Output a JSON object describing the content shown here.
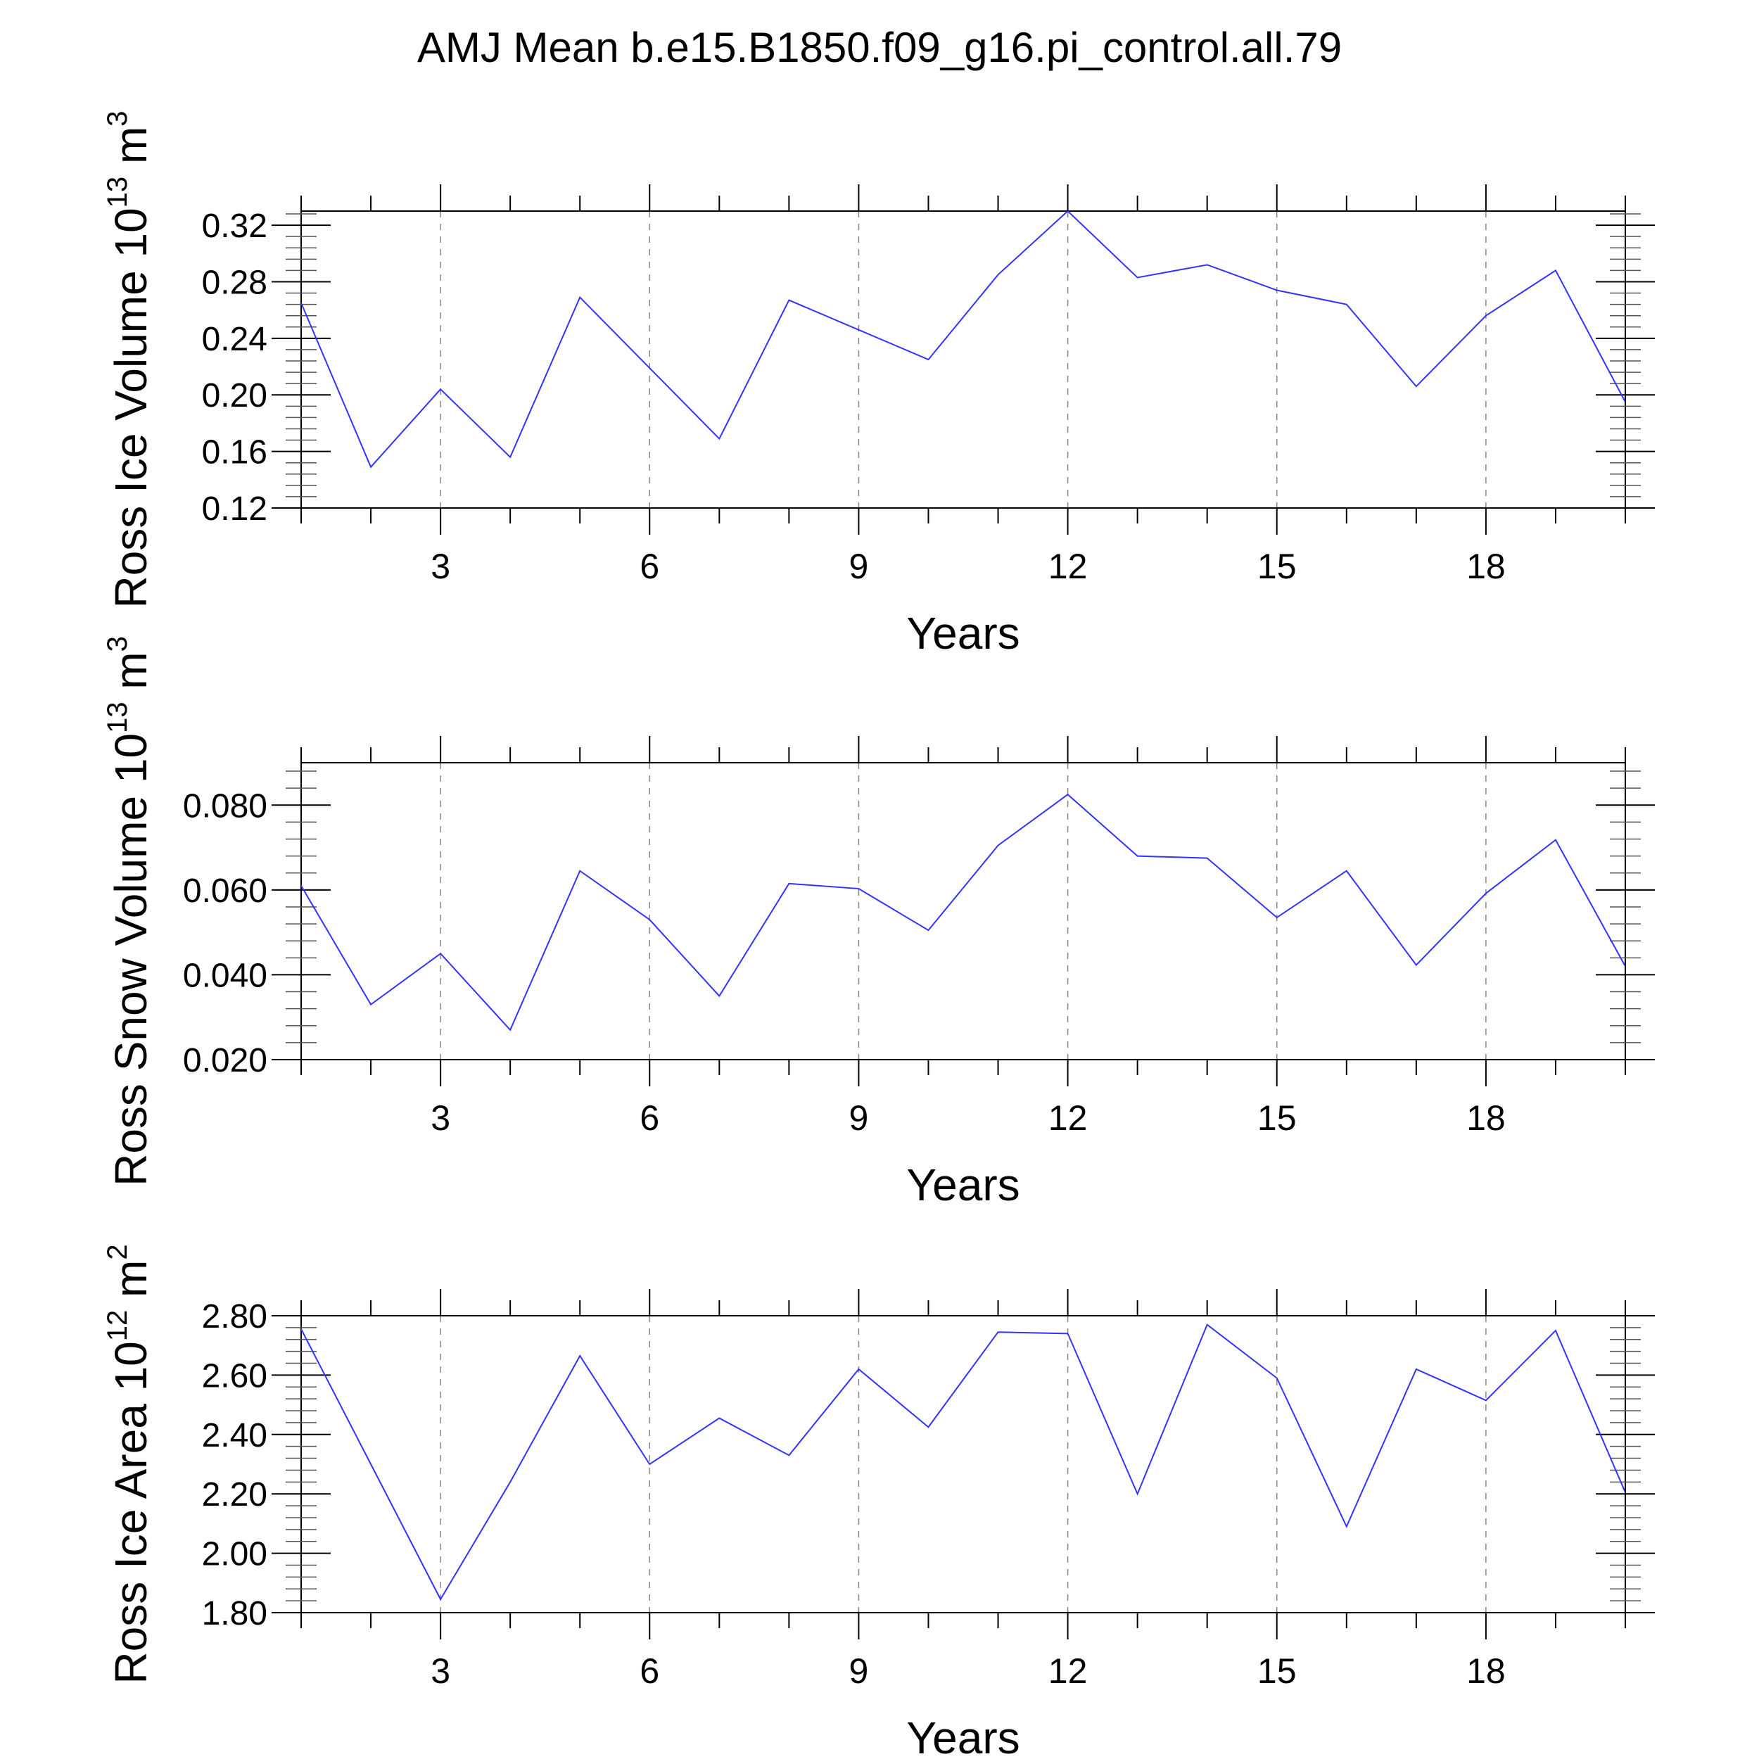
{
  "title": "AMJ Mean b.e15.B1850.f09_g16.pi_control.all.79",
  "colors": {
    "line": "#3333ff",
    "axes": "#000000",
    "grid": "#888888"
  },
  "chart_data": [
    {
      "type": "line",
      "ylabel": "Ross Ice Volume 10",
      "ylabel_exp": "13",
      "ylabel_unit": " m",
      "ylabel_unit_exp": "3",
      "xlabel": "Years",
      "xlim": [
        1,
        20
      ],
      "ylim": [
        0.12,
        0.33
      ],
      "xticks": [
        3,
        6,
        9,
        12,
        15,
        18
      ],
      "xtick_labels": [
        "3",
        "6",
        "9",
        "12",
        "15",
        "18"
      ],
      "yticks": [
        0.12,
        0.16,
        0.2,
        0.24,
        0.28,
        0.32
      ],
      "ytick_labels": [
        "0.12",
        "0.16",
        "0.20",
        "0.24",
        "0.28",
        "0.32"
      ],
      "x": [
        1,
        2,
        3,
        4,
        5,
        6,
        7,
        8,
        9,
        10,
        11,
        12,
        13,
        14,
        15,
        16,
        17,
        18,
        19,
        20
      ],
      "values": [
        0.265,
        0.149,
        0.204,
        0.156,
        0.269,
        0.219,
        0.169,
        0.267,
        0.246,
        0.225,
        0.285,
        0.33,
        0.283,
        0.292,
        0.274,
        0.264,
        0.206,
        0.256,
        0.288,
        0.195
      ]
    },
    {
      "type": "line",
      "ylabel": "Ross Snow Volume 10",
      "ylabel_exp": "13",
      "ylabel_unit": " m",
      "ylabel_unit_exp": "3",
      "xlabel": "Years",
      "xlim": [
        1,
        20
      ],
      "ylim": [
        0.02,
        0.09
      ],
      "xticks": [
        3,
        6,
        9,
        12,
        15,
        18
      ],
      "xtick_labels": [
        "3",
        "6",
        "9",
        "12",
        "15",
        "18"
      ],
      "yticks": [
        0.02,
        0.04,
        0.06,
        0.08
      ],
      "ytick_labels": [
        "0.020",
        "0.040",
        "0.060",
        "0.080"
      ],
      "x": [
        1,
        2,
        3,
        4,
        5,
        6,
        7,
        8,
        9,
        10,
        11,
        12,
        13,
        14,
        15,
        16,
        17,
        18,
        19,
        20
      ],
      "values": [
        0.061,
        0.033,
        0.045,
        0.027,
        0.0645,
        0.053,
        0.035,
        0.0615,
        0.0603,
        0.0505,
        0.0705,
        0.0825,
        0.068,
        0.0675,
        0.0535,
        0.0645,
        0.0423,
        0.0592,
        0.0718,
        0.042
      ]
    },
    {
      "type": "line",
      "ylabel": "Ross Ice Area 10",
      "ylabel_exp": "12",
      "ylabel_unit": " m",
      "ylabel_unit_exp": "2",
      "xlabel": "Years",
      "xlim": [
        1,
        20
      ],
      "ylim": [
        1.8,
        2.8
      ],
      "xticks": [
        3,
        6,
        9,
        12,
        15,
        18
      ],
      "xtick_labels": [
        "3",
        "6",
        "9",
        "12",
        "15",
        "18"
      ],
      "yticks": [
        1.8,
        2.0,
        2.2,
        2.4,
        2.6,
        2.8
      ],
      "ytick_labels": [
        "1.80",
        "2.00",
        "2.20",
        "2.40",
        "2.60",
        "2.80"
      ],
      "x": [
        1,
        2,
        3,
        4,
        5,
        6,
        7,
        8,
        9,
        10,
        11,
        12,
        13,
        14,
        15,
        16,
        17,
        18,
        19,
        20
      ],
      "values": [
        2.755,
        2.3,
        1.845,
        2.24,
        2.665,
        2.3,
        2.455,
        2.33,
        2.62,
        2.425,
        2.745,
        2.74,
        2.2,
        2.77,
        2.59,
        2.09,
        2.62,
        2.515,
        2.75,
        2.205
      ]
    }
  ]
}
